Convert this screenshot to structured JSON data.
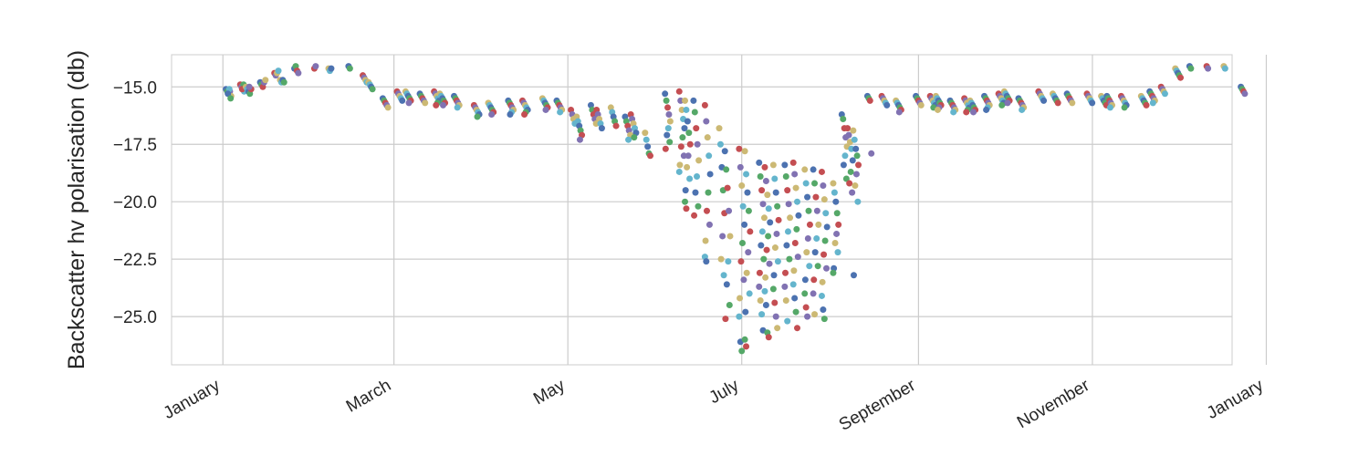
{
  "chart_data": {
    "type": "scatter",
    "title": "",
    "xlabel": "",
    "ylabel": "Backscatter hv polarisation (db)",
    "x_type": "date",
    "xlim": [
      "2015-12-14",
      "2016-12-20"
    ],
    "ylim": [
      -27.1,
      -13.6
    ],
    "x_ticks": [
      {
        "date": "2016-01-01",
        "label": "January"
      },
      {
        "date": "2016-03-01",
        "label": "March"
      },
      {
        "date": "2016-05-01",
        "label": "May"
      },
      {
        "date": "2016-07-01",
        "label": "July"
      },
      {
        "date": "2016-09-01",
        "label": "September"
      },
      {
        "date": "2016-11-01",
        "label": "November"
      },
      {
        "date": "2017-01-01",
        "label": "January"
      }
    ],
    "y_ticks": [
      -15.0,
      -17.5,
      -20.0,
      -22.5,
      -25.0
    ],
    "y_tick_labels": [
      "−15.0",
      "−17.5",
      "−20.0",
      "−22.5",
      "−25.0"
    ],
    "grid": true,
    "legend": "none",
    "palette": [
      "#4C72B0",
      "#55A868",
      "#C44E52",
      "#8172B2",
      "#CCB974",
      "#64B5CD"
    ],
    "groups": [
      {
        "date": "2016-01-03",
        "values": [
          -15.1,
          -15.2,
          -15.3,
          -15.2,
          -15.4,
          -15.1,
          -15.3,
          -15.5
        ]
      },
      {
        "date": "2016-01-08",
        "values": [
          -14.9,
          -15.0,
          -15.1,
          -15.2,
          -15.0,
          -14.9,
          -15.1
        ]
      },
      {
        "date": "2016-01-10",
        "values": [
          -15.0,
          -15.1,
          -15.2,
          -15.3,
          -15.1,
          -15.0
        ]
      },
      {
        "date": "2016-01-15",
        "values": [
          -14.8,
          -14.9,
          -15.0,
          -14.8,
          -14.7
        ]
      },
      {
        "date": "2016-01-20",
        "values": [
          -14.4,
          -14.5,
          -14.4,
          -14.3
        ]
      },
      {
        "date": "2016-01-22",
        "values": [
          -14.7,
          -14.8,
          -14.7,
          -14.8
        ]
      },
      {
        "date": "2016-01-27",
        "values": [
          -14.2,
          -14.1,
          -14.3,
          -14.4
        ]
      },
      {
        "date": "2016-02-03",
        "values": [
          -14.2,
          -14.1
        ]
      },
      {
        "date": "2016-02-08",
        "values": [
          -14.2,
          -14.3,
          -14.2
        ]
      },
      {
        "date": "2016-02-15",
        "values": [
          -14.1,
          -14.2
        ]
      },
      {
        "date": "2016-02-20",
        "values": [
          -14.5,
          -14.6,
          -14.7,
          -14.8
        ]
      },
      {
        "date": "2016-02-22",
        "values": [
          -14.8,
          -14.9,
          -15.0,
          -15.1
        ]
      },
      {
        "date": "2016-02-27",
        "values": [
          -15.5,
          -15.6,
          -15.7,
          -15.8,
          -15.9
        ]
      },
      {
        "date": "2016-03-03",
        "values": [
          -15.2,
          -15.3,
          -15.4,
          -15.5,
          -15.6
        ]
      },
      {
        "date": "2016-03-06",
        "values": [
          -15.2,
          -15.3,
          -15.4,
          -15.5,
          -15.6,
          -15.7
        ]
      },
      {
        "date": "2016-03-11",
        "values": [
          -15.3,
          -15.4,
          -15.5,
          -15.6,
          -15.7
        ]
      },
      {
        "date": "2016-03-16",
        "values": [
          -15.2,
          -15.3,
          -15.4,
          -15.5,
          -15.6,
          -15.7,
          -15.8
        ]
      },
      {
        "date": "2016-03-18",
        "values": [
          -15.3,
          -15.4,
          -15.5,
          -15.6,
          -15.7,
          -15.8
        ]
      },
      {
        "date": "2016-03-23",
        "values": [
          -15.4,
          -15.5,
          -15.6,
          -15.7,
          -15.8,
          -15.9
        ]
      },
      {
        "date": "2016-03-30",
        "values": [
          -15.8,
          -15.9,
          -16.0,
          -16.1,
          -16.2,
          -16.3
        ]
      },
      {
        "date": "2016-04-04",
        "values": [
          -15.7,
          -15.8,
          -15.9,
          -16.0,
          -16.1,
          -16.2
        ]
      },
      {
        "date": "2016-04-11",
        "values": [
          -15.6,
          -15.7,
          -15.8,
          -15.9,
          -16.0,
          -16.1,
          -16.2
        ]
      },
      {
        "date": "2016-04-16",
        "values": [
          -15.6,
          -15.7,
          -15.8,
          -15.9,
          -16.0,
          -16.1,
          -16.2
        ]
      },
      {
        "date": "2016-04-23",
        "values": [
          -15.5,
          -15.6,
          -15.7,
          -15.8,
          -15.9,
          -16.0
        ]
      },
      {
        "date": "2016-04-28",
        "values": [
          -15.6,
          -15.7,
          -15.8,
          -15.9,
          -16.0,
          -16.1
        ]
      },
      {
        "date": "2016-05-03",
        "values": [
          -16.0,
          -16.2,
          -16.4,
          -16.6
        ]
      },
      {
        "date": "2016-05-05",
        "values": [
          -16.3,
          -16.5,
          -16.7,
          -16.9,
          -17.1,
          -17.3
        ]
      },
      {
        "date": "2016-05-10",
        "values": [
          -15.8,
          -16.0,
          -16.2,
          -16.4,
          -16.6
        ]
      },
      {
        "date": "2016-05-12",
        "values": [
          -16.0,
          -16.2,
          -16.4,
          -16.6,
          -16.8
        ]
      },
      {
        "date": "2016-05-17",
        "values": [
          -15.9,
          -16.1,
          -16.3,
          -16.5,
          -16.7
        ]
      },
      {
        "date": "2016-05-22",
        "values": [
          -16.3,
          -16.5,
          -16.7,
          -16.9,
          -17.1,
          -17.3
        ]
      },
      {
        "date": "2016-05-24",
        "values": [
          -16.2,
          -16.4,
          -16.6,
          -16.8,
          -17.0,
          -17.2
        ]
      },
      {
        "date": "2016-05-29",
        "values": [
          -17.0,
          -17.3,
          -17.6,
          -17.9,
          -18.0
        ]
      },
      {
        "date": "2016-06-05",
        "values": [
          -15.3,
          -15.6,
          -15.9,
          -16.2,
          -16.5,
          -16.8,
          -17.1,
          -17.4,
          -17.7
        ]
      },
      {
        "date": "2016-06-10",
        "values": [
          -15.2,
          -15.6,
          -16.0,
          -16.4,
          -16.8,
          -17.2,
          -17.6,
          -18.0,
          -18.4,
          -18.7
        ]
      },
      {
        "date": "2016-06-12",
        "values": [
          -15.6,
          -16.0,
          -16.5,
          -17.0,
          -17.5,
          -18.0,
          -18.5,
          -19.0,
          -19.5,
          -20.0,
          -20.3
        ]
      },
      {
        "date": "2016-06-15",
        "values": [
          -15.6,
          -16.1,
          -16.8,
          -17.5,
          -18.2,
          -18.9,
          -19.6,
          -20.2,
          -20.6
        ]
      },
      {
        "date": "2016-06-19",
        "values": [
          -15.8,
          -16.5,
          -17.2,
          -18.0,
          -18.8,
          -19.6,
          -20.4,
          -21.0,
          -21.7,
          -22.4,
          -22.6
        ]
      },
      {
        "date": "2016-06-24",
        "values": [
          -16.8,
          -17.5,
          -18.5,
          -19.5,
          -20.5,
          -21.5,
          -22.5,
          -23.2
        ]
      },
      {
        "date": "2016-06-26",
        "values": [
          -17.8,
          -18.6,
          -19.4,
          -20.4,
          -21.5,
          -22.6,
          -23.6,
          -24.5,
          -25.1
        ]
      },
      {
        "date": "2016-07-01",
        "values": [
          -17.7,
          -18.5,
          -19.3,
          -20.2,
          -21.0,
          -21.8,
          -22.6,
          -23.4,
          -24.2,
          -25.0,
          -26.1,
          -26.5
        ]
      },
      {
        "date": "2016-07-03",
        "values": [
          -17.8,
          -18.8,
          -19.6,
          -20.4,
          -21.3,
          -22.2,
          -23.1,
          -24.0,
          -24.8,
          -26.0,
          -26.3
        ]
      },
      {
        "date": "2016-07-08",
        "values": [
          -18.3,
          -18.9,
          -19.5,
          -20.1,
          -20.7,
          -21.3,
          -21.9,
          -22.5,
          -23.1,
          -23.7,
          -24.3,
          -24.9,
          -25.6
        ]
      },
      {
        "date": "2016-07-10",
        "values": [
          -18.5,
          -19.1,
          -19.7,
          -20.3,
          -20.9,
          -21.5,
          -22.1,
          -22.7,
          -23.3,
          -23.9,
          -24.5,
          -25.7,
          -25.9
        ]
      },
      {
        "date": "2016-07-13",
        "values": [
          -18.4,
          -19.0,
          -19.6,
          -20.2,
          -20.8,
          -21.4,
          -22.0,
          -22.6,
          -23.2,
          -23.8,
          -24.4,
          -25.0,
          -25.5
        ]
      },
      {
        "date": "2016-07-17",
        "values": [
          -18.4,
          -18.9,
          -19.5,
          -20.1,
          -20.7,
          -21.3,
          -21.9,
          -22.5,
          -23.1,
          -23.7,
          -24.3,
          -25.2
        ]
      },
      {
        "date": "2016-07-20",
        "values": [
          -18.3,
          -18.8,
          -19.4,
          -20.0,
          -20.6,
          -21.2,
          -21.8,
          -22.4,
          -23.0,
          -23.6,
          -24.2,
          -24.8,
          -25.5
        ]
      },
      {
        "date": "2016-07-24",
        "values": [
          -18.6,
          -19.2,
          -19.8,
          -20.4,
          -21.0,
          -21.6,
          -22.2,
          -22.8,
          -23.4,
          -24.0,
          -24.6,
          -25.0
        ]
      },
      {
        "date": "2016-07-27",
        "values": [
          -18.6,
          -19.2,
          -19.8,
          -20.4,
          -21.0,
          -21.6,
          -22.2,
          -22.8,
          -23.4,
          -24.0,
          -24.9
        ]
      },
      {
        "date": "2016-07-30",
        "values": [
          -18.7,
          -19.3,
          -19.9,
          -20.5,
          -21.1,
          -21.7,
          -22.3,
          -22.9,
          -23.5,
          -24.1,
          -24.7,
          -25.1
        ]
      },
      {
        "date": "2016-08-03",
        "values": [
          -19.2,
          -19.6,
          -20.0,
          -20.5,
          -21.0,
          -21.4,
          -21.8,
          -22.2,
          -22.9,
          -23.1
        ]
      },
      {
        "date": "2016-08-06",
        "values": [
          -16.2,
          -16.4,
          -16.8,
          -17.2,
          -17.6,
          -18.0,
          -18.4,
          -19.0
        ]
      },
      {
        "date": "2016-08-08",
        "values": [
          -16.8,
          -17.1,
          -17.4,
          -17.7,
          -18.2,
          -18.7,
          -19.2,
          -19.6
        ]
      },
      {
        "date": "2016-08-10",
        "values": [
          -16.9,
          -17.3,
          -17.7,
          -18.0,
          -18.4,
          -18.8,
          -19.3,
          -20.0,
          -23.2
        ]
      },
      {
        "date": "2016-08-15",
        "values": [
          -15.4,
          -15.5,
          -15.6,
          -17.9
        ]
      },
      {
        "date": "2016-08-20",
        "values": [
          -15.4,
          -15.5,
          -15.6,
          -15.7,
          -15.8
        ]
      },
      {
        "date": "2016-08-25",
        "values": [
          -15.6,
          -15.7,
          -15.8,
          -15.9,
          -16.0,
          -16.1
        ]
      },
      {
        "date": "2016-09-01",
        "values": [
          -15.4,
          -15.5,
          -15.6,
          -15.7,
          -15.8
        ]
      },
      {
        "date": "2016-09-06",
        "values": [
          -15.4,
          -15.5,
          -15.6,
          -15.7,
          -15.8,
          -15.9
        ]
      },
      {
        "date": "2016-09-08",
        "values": [
          -15.4,
          -15.5,
          -15.6,
          -15.7,
          -15.8,
          -15.9,
          -16.0
        ]
      },
      {
        "date": "2016-09-13",
        "values": [
          -15.6,
          -15.7,
          -15.8,
          -15.9,
          -16.0,
          -16.1
        ]
      },
      {
        "date": "2016-09-18",
        "values": [
          -15.5,
          -15.6,
          -15.7,
          -15.8,
          -15.9,
          -16.0,
          -16.1
        ]
      },
      {
        "date": "2016-09-20",
        "values": [
          -15.6,
          -15.7,
          -15.8,
          -15.9,
          -16.0,
          -16.1
        ]
      },
      {
        "date": "2016-09-25",
        "values": [
          -15.4,
          -15.5,
          -15.6,
          -15.7,
          -15.8,
          -15.9,
          -16.0
        ]
      },
      {
        "date": "2016-09-30",
        "values": [
          -15.3,
          -15.4,
          -15.5,
          -15.6,
          -15.7,
          -15.8
        ]
      },
      {
        "date": "2016-10-02",
        "values": [
          -15.2,
          -15.3,
          -15.4,
          -15.5,
          -15.6,
          -15.7
        ]
      },
      {
        "date": "2016-10-07",
        "values": [
          -15.5,
          -15.6,
          -15.7,
          -15.8,
          -15.9,
          -16.0
        ]
      },
      {
        "date": "2016-10-14",
        "values": [
          -15.2,
          -15.3,
          -15.4,
          -15.5,
          -15.6
        ]
      },
      {
        "date": "2016-10-19",
        "values": [
          -15.3,
          -15.4,
          -15.5,
          -15.6,
          -15.7
        ]
      },
      {
        "date": "2016-10-24",
        "values": [
          -15.3,
          -15.4,
          -15.5,
          -15.6,
          -15.7
        ]
      },
      {
        "date": "2016-10-31",
        "values": [
          -15.3,
          -15.4,
          -15.5,
          -15.6,
          -15.7
        ]
      },
      {
        "date": "2016-11-05",
        "values": [
          -15.4,
          -15.5,
          -15.6,
          -15.7,
          -15.8
        ]
      },
      {
        "date": "2016-11-07",
        "values": [
          -15.4,
          -15.5,
          -15.6,
          -15.7,
          -15.8,
          -15.9
        ]
      },
      {
        "date": "2016-11-12",
        "values": [
          -15.4,
          -15.5,
          -15.6,
          -15.7,
          -15.8,
          -15.9
        ]
      },
      {
        "date": "2016-11-19",
        "values": [
          -15.4,
          -15.5,
          -15.6,
          -15.7,
          -15.8
        ]
      },
      {
        "date": "2016-11-22",
        "values": [
          -15.2,
          -15.3,
          -15.4,
          -15.5,
          -15.6,
          -15.7
        ]
      },
      {
        "date": "2016-11-26",
        "values": [
          -15.0,
          -15.1,
          -15.2,
          -15.3
        ]
      },
      {
        "date": "2016-12-01",
        "values": [
          -14.2,
          -14.3,
          -14.4,
          -14.5,
          -14.6
        ]
      },
      {
        "date": "2016-12-06",
        "values": [
          -14.1,
          -14.2
        ]
      },
      {
        "date": "2016-12-12",
        "values": [
          -14.1,
          -14.2
        ]
      },
      {
        "date": "2016-12-18",
        "values": [
          -14.1,
          -14.2
        ]
      },
      {
        "date": "2016-12-24",
        "values": [
          -15.0,
          -15.1,
          -15.2,
          -15.3
        ]
      }
    ]
  }
}
